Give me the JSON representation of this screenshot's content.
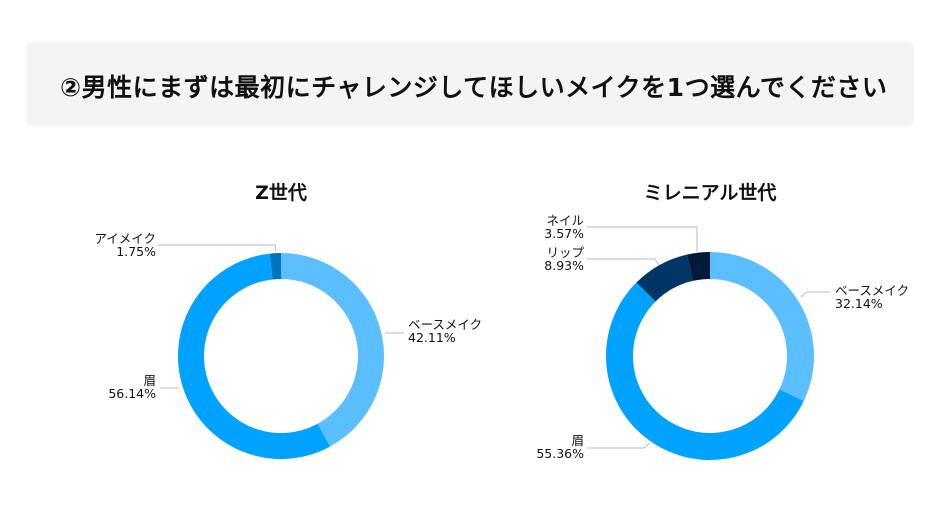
{
  "header": {
    "title": "②男性にまずは最初にチャレンジしてほしいメイクを1つ選んでください"
  },
  "colors": {
    "background_box": "#f4f4f4",
    "base_make": "#5bbfff",
    "eyebrow": "#00a2ff",
    "eye_make": "#0074bf",
    "lip": "#003666",
    "nail": "#001a3a",
    "leader_line": "#bbbbbb"
  },
  "charts": {
    "gen_z": {
      "title": "Z世代",
      "labels": {
        "eye_make": {
          "name": "アイメイク",
          "pct": "1.75%"
        },
        "base_make": {
          "name": "ベースメイク",
          "pct": "42.11%"
        },
        "eyebrow": {
          "name": "眉",
          "pct": "56.14%"
        }
      }
    },
    "millennial": {
      "title": "ミレニアル世代",
      "labels": {
        "nail": {
          "name": "ネイル",
          "pct": "3.57%"
        },
        "lip": {
          "name": "リップ",
          "pct": "8.93%"
        },
        "base_make": {
          "name": "ベースメイク",
          "pct": "32.14%"
        },
        "eyebrow": {
          "name": "眉",
          "pct": "55.36%"
        }
      }
    }
  },
  "chart_data": [
    {
      "type": "pie",
      "subtype": "donut",
      "title": "Z世代",
      "categories": [
        "ベースメイク",
        "眉",
        "アイメイク"
      ],
      "values": [
        42.11,
        56.14,
        1.75
      ],
      "colors": [
        "#5bbfff",
        "#00a2ff",
        "#0074bf"
      ],
      "start_angle": "12 o'clock, clockwise",
      "legend": "none (leader-line labels)"
    },
    {
      "type": "pie",
      "subtype": "donut",
      "title": "ミレニアル世代",
      "categories": [
        "ベースメイク",
        "眉",
        "リップ",
        "ネイル"
      ],
      "values": [
        32.14,
        55.36,
        8.93,
        3.57
      ],
      "colors": [
        "#5bbfff",
        "#00a2ff",
        "#003666",
        "#001a3a"
      ],
      "start_angle": "12 o'clock, clockwise",
      "legend": "none (leader-line labels)"
    }
  ]
}
